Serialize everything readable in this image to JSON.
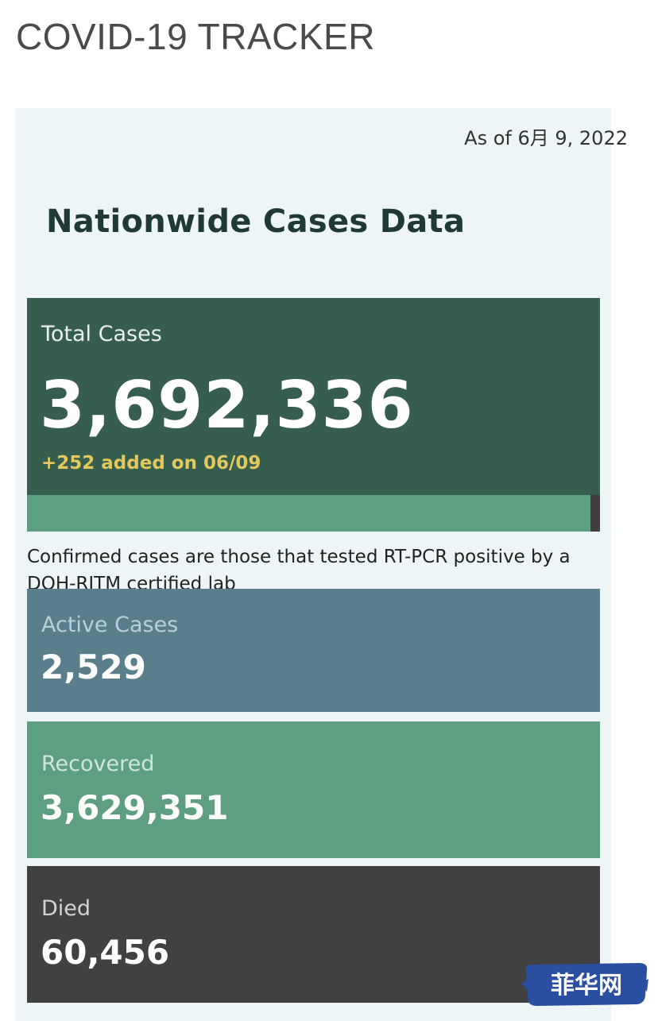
{
  "header": {
    "title": "COVID-19 TRACKER"
  },
  "dashboard": {
    "as_of": "As of 6月 9, 2022",
    "title": "Nationwide Cases Data",
    "total": {
      "label": "Total Cases",
      "value": "3,692,336",
      "delta": "+252 added on 06/09"
    },
    "note": "Confirmed cases are those that tested RT-PCR positive by a DOH-RITM certified lab",
    "active": {
      "label": "Active Cases",
      "value": "2,529"
    },
    "recovered": {
      "label": "Recovered",
      "value": "3,629,351"
    },
    "died": {
      "label": "Died",
      "value": "60,456"
    }
  },
  "watermark": {
    "text": "菲华网"
  },
  "colors": {
    "total_bg": "#365e4f",
    "delta_text": "#e3c85f",
    "active_bg": "#5a7f8c",
    "recovered_bg": "#5e9f82",
    "died_bg": "#414141",
    "panel_bg": "#eef5f6",
    "watermark_bg": "#2a4fa0"
  }
}
